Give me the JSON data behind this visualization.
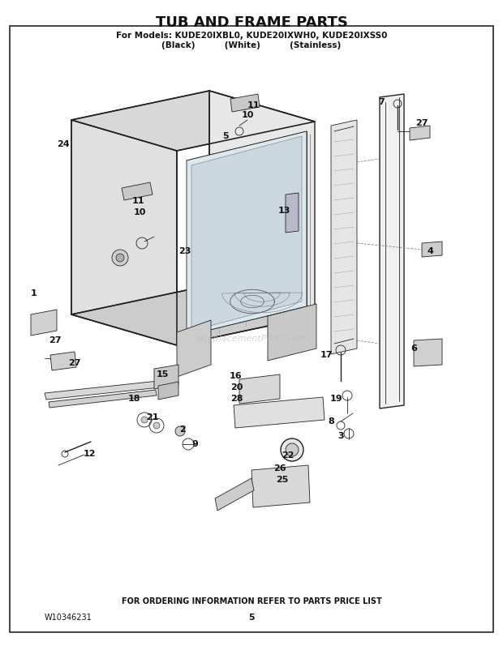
{
  "title": "TUB AND FRAME PARTS",
  "subtitle_line1": "For Models: KUDE20IXBL0, KUDE20IXWH0, KUDE20IXSS0",
  "subtitle_line2": "(Black)          (White)          (Stainless)",
  "footer_text": "FOR ORDERING INFORMATION REFER TO PARTS PRICE LIST",
  "part_number": "W10346231",
  "page_number": "5",
  "watermark": "eReplacementParts.com",
  "bg_color": "#ffffff",
  "line_color": "#222222",
  "label_color": "#111111",
  "title_color": "#111111"
}
